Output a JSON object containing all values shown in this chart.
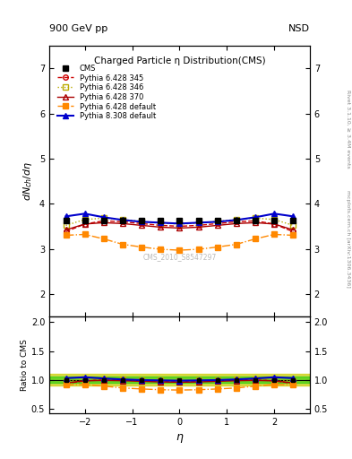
{
  "title": "Charged Particle η Distribution(CMS)",
  "top_left_label": "900 GeV pp",
  "top_right_label": "NSD",
  "right_label_top": "Rivet 3.1.10, ≥ 3.4M events",
  "right_label_bottom": "mcplots.cern.ch [arXiv:1306.3436]",
  "watermark": "CMS_2010_S8547297",
  "ylabel_main": "$dN_{ch}/d\\eta$",
  "ylabel_ratio": "Ratio to CMS",
  "xlabel": "η",
  "ylim_main": [
    1.5,
    7.5
  ],
  "ylim_ratio": [
    0.42,
    2.1
  ],
  "yticks_main": [
    2,
    3,
    4,
    5,
    6,
    7
  ],
  "yticks_ratio": [
    0.5,
    1.0,
    1.5,
    2.0
  ],
  "xlim": [
    -2.75,
    2.75
  ],
  "xticks": [
    -2,
    -1,
    0,
    1,
    2
  ],
  "eta": [
    -2.4,
    -2.0,
    -1.6,
    -1.2,
    -0.8,
    -0.4,
    0.0,
    0.4,
    0.8,
    1.2,
    1.6,
    2.0,
    2.4
  ],
  "CMS_data": [
    3.62,
    3.62,
    3.62,
    3.62,
    3.62,
    3.62,
    3.62,
    3.62,
    3.62,
    3.62,
    3.62,
    3.62,
    3.62
  ],
  "Pythia6_345": [
    3.38,
    3.55,
    3.62,
    3.6,
    3.56,
    3.52,
    3.5,
    3.52,
    3.56,
    3.6,
    3.62,
    3.55,
    3.38
  ],
  "Pythia6_346": [
    3.52,
    3.65,
    3.68,
    3.65,
    3.61,
    3.57,
    3.55,
    3.57,
    3.61,
    3.65,
    3.68,
    3.65,
    3.52
  ],
  "Pythia6_370": [
    3.42,
    3.55,
    3.58,
    3.56,
    3.52,
    3.48,
    3.46,
    3.48,
    3.52,
    3.56,
    3.58,
    3.55,
    3.42
  ],
  "Pythia6_default": [
    3.3,
    3.32,
    3.22,
    3.1,
    3.04,
    2.99,
    2.97,
    2.99,
    3.04,
    3.1,
    3.22,
    3.32,
    3.3
  ],
  "Pythia8_default": [
    3.72,
    3.78,
    3.7,
    3.64,
    3.6,
    3.58,
    3.56,
    3.58,
    3.6,
    3.64,
    3.7,
    3.78,
    3.72
  ],
  "color_345": "#cc0000",
  "color_346": "#bbaa00",
  "color_370": "#aa0000",
  "color_default6": "#ff8800",
  "color_default8": "#0000cc",
  "shade_green": "#00cc00",
  "shade_yellow": "#cccc00",
  "ratio_band_green": 0.05,
  "ratio_band_yellow": 0.1
}
